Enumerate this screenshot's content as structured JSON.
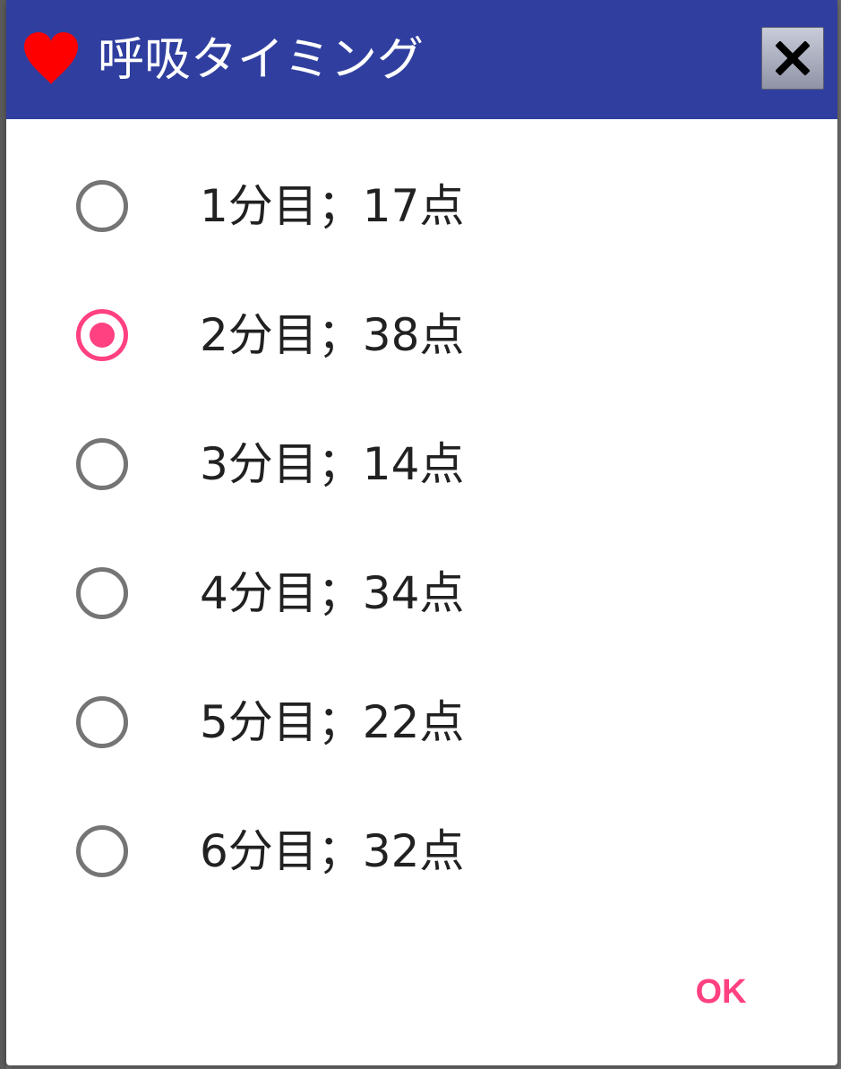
{
  "dialog": {
    "title": "呼吸タイミング",
    "title_icon": "heart-icon",
    "close_icon": "close-icon",
    "ok_label": "OK",
    "colors": {
      "title_bar": "#303f9f",
      "accent": "#ff4081",
      "heart": "#ff0000",
      "radio_off": "#757575"
    }
  },
  "options": [
    {
      "label": "1分目；17点",
      "checked": false
    },
    {
      "label": "2分目；38点",
      "checked": true
    },
    {
      "label": "3分目；14点",
      "checked": false
    },
    {
      "label": "4分目；34点",
      "checked": false
    },
    {
      "label": "5分目；22点",
      "checked": false
    },
    {
      "label": "6分目；32点",
      "checked": false
    }
  ]
}
